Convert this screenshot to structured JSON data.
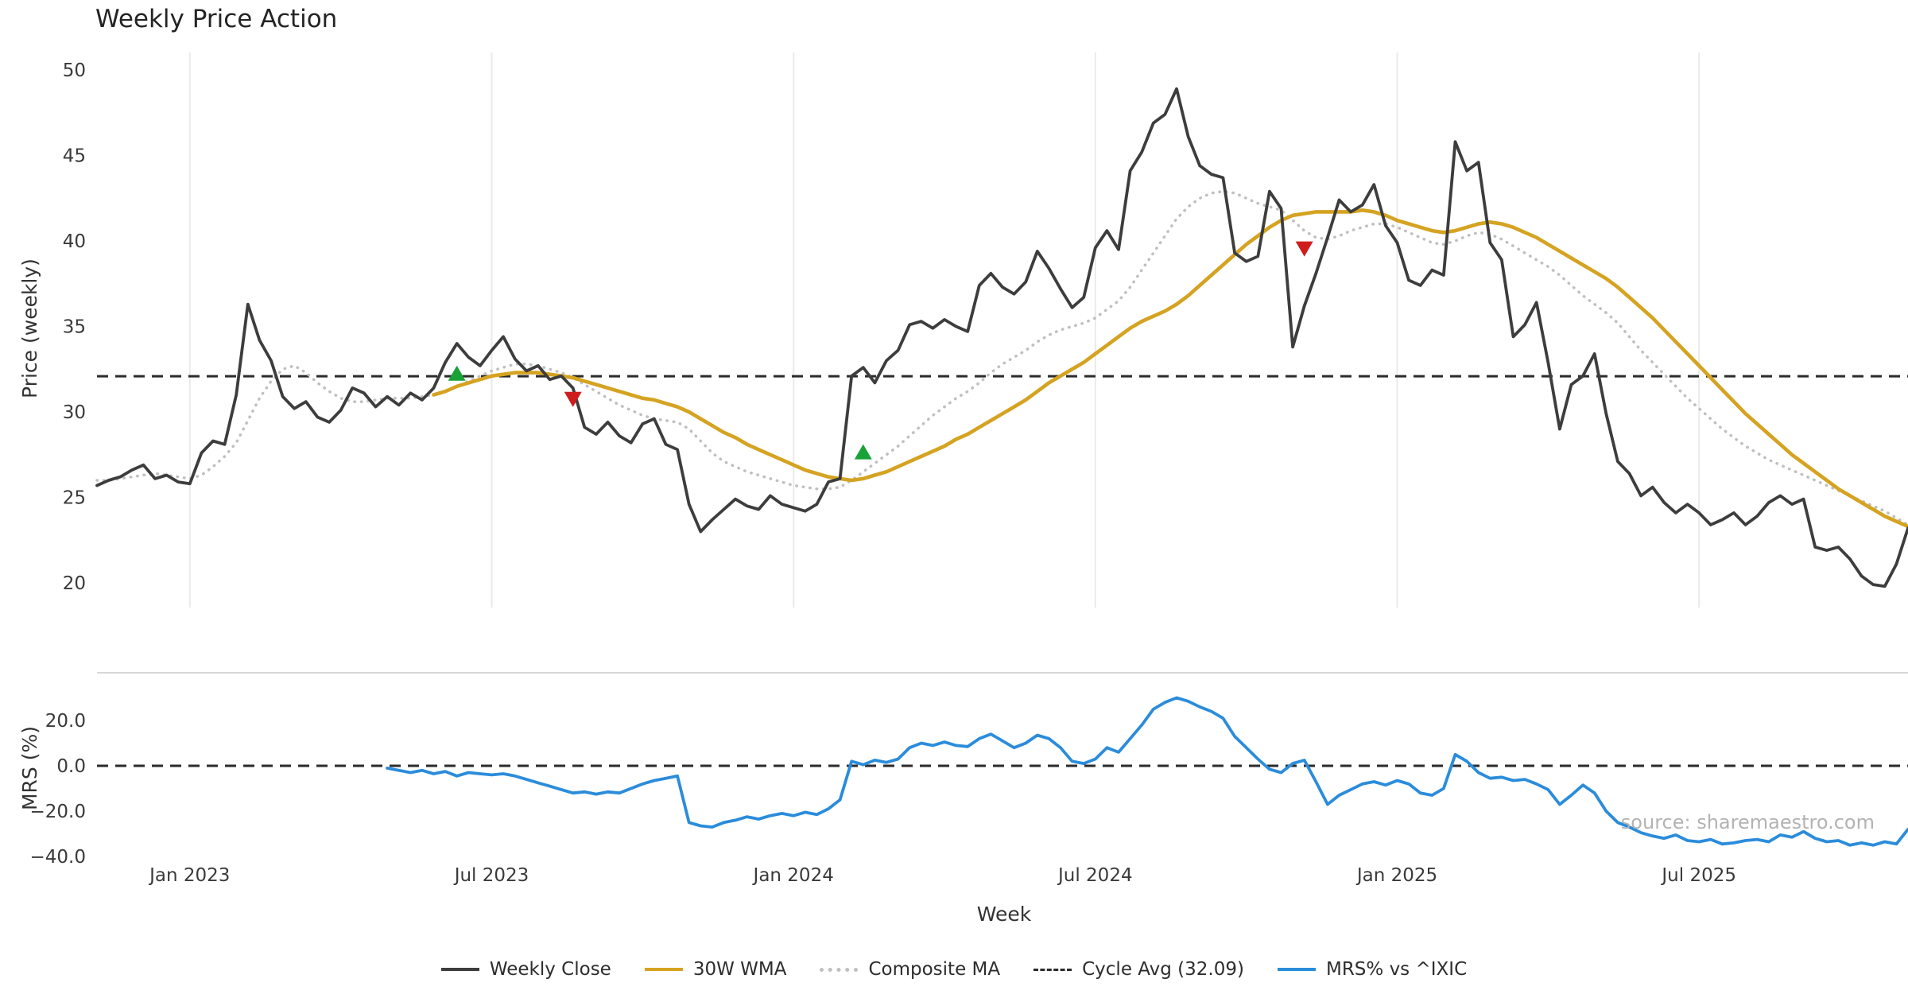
{
  "chart_data": {
    "type": "line",
    "title": "Weekly Price Action",
    "xlabel": "Week",
    "watermark": "source: sharemaestro.com",
    "n_weeks": 157,
    "x_tick_labels": [
      "Jan 2023",
      "Jul 2023",
      "Jan 2024",
      "Jul 2024",
      "Jan 2025",
      "Jul 2025"
    ],
    "x_tick_weeks": [
      8,
      34,
      60,
      86,
      112,
      138
    ],
    "price_panel": {
      "ylabel": "Price (weekly)",
      "y_ticks": [
        50,
        45,
        40,
        35,
        30,
        25,
        20
      ],
      "y_tick_labels": [
        "50",
        "45",
        "40",
        "35",
        "30",
        "25",
        "20"
      ],
      "ylim": [
        18.5,
        51
      ],
      "cycle_avg": 32.09,
      "buy_color": "#18a238",
      "sell_color": "#cf1d1d",
      "series": [
        {
          "name": "Weekly Close",
          "color": "#3d3d3d",
          "style": "solid",
          "start_week": 0,
          "values": [
            25.7,
            26.0,
            26.2,
            26.6,
            26.9,
            26.1,
            26.3,
            25.9,
            25.8,
            27.6,
            28.3,
            28.1,
            31.0,
            36.3,
            34.2,
            33.0,
            30.9,
            30.2,
            30.6,
            29.7,
            29.4,
            30.1,
            31.4,
            31.1,
            30.3,
            30.9,
            30.4,
            31.1,
            30.7,
            31.4,
            32.9,
            34.0,
            33.2,
            32.7,
            33.6,
            34.4,
            33.1,
            32.4,
            32.7,
            31.9,
            32.1,
            31.4,
            29.1,
            28.7,
            29.4,
            28.6,
            28.2,
            29.3,
            29.6,
            28.1,
            27.8,
            24.6,
            23.0,
            23.7,
            24.3,
            24.9,
            24.5,
            24.3,
            25.1,
            24.6,
            24.4,
            24.2,
            24.6,
            25.9,
            26.1,
            32.1,
            32.6,
            31.7,
            33.0,
            33.6,
            35.1,
            35.3,
            34.9,
            35.4,
            35.0,
            34.7,
            37.4,
            38.1,
            37.3,
            36.9,
            37.6,
            39.4,
            38.4,
            37.2,
            36.1,
            36.7,
            39.6,
            40.6,
            39.5,
            44.1,
            45.2,
            46.9,
            47.4,
            48.9,
            46.1,
            44.4,
            43.9,
            43.7,
            39.3,
            38.8,
            39.1,
            42.9,
            41.9,
            33.8,
            36.2,
            38.1,
            40.2,
            42.4,
            41.7,
            42.1,
            43.3,
            40.9,
            39.9,
            37.7,
            37.4,
            38.3,
            38.0,
            45.8,
            44.1,
            44.6,
            39.9,
            38.9,
            34.4,
            35.1,
            36.4,
            32.9,
            29.0,
            31.6,
            32.1,
            33.4,
            29.9,
            27.1,
            26.4,
            25.1,
            25.6,
            24.7,
            24.1,
            24.6,
            24.1,
            23.4,
            23.7,
            24.1,
            23.4,
            23.9,
            24.7,
            25.1,
            24.6,
            24.9,
            22.1,
            21.9,
            22.1,
            21.4,
            20.4,
            19.9,
            19.8,
            21.1,
            23.2
          ]
        },
        {
          "name": "30W WMA",
          "color": "#d5a321",
          "style": "solid",
          "start_week": 29,
          "values": [
            31.0,
            31.2,
            31.5,
            31.7,
            31.9,
            32.1,
            32.2,
            32.3,
            32.3,
            32.3,
            32.2,
            32.1,
            32.0,
            31.8,
            31.6,
            31.4,
            31.2,
            31.0,
            30.8,
            30.7,
            30.5,
            30.3,
            30.0,
            29.6,
            29.2,
            28.8,
            28.5,
            28.1,
            27.8,
            27.5,
            27.2,
            26.9,
            26.6,
            26.4,
            26.2,
            26.1,
            26.0,
            26.1,
            26.3,
            26.5,
            26.8,
            27.1,
            27.4,
            27.7,
            28.0,
            28.4,
            28.7,
            29.1,
            29.5,
            29.9,
            30.3,
            30.7,
            31.2,
            31.7,
            32.1,
            32.5,
            32.9,
            33.4,
            33.9,
            34.4,
            34.9,
            35.3,
            35.6,
            35.9,
            36.3,
            36.8,
            37.4,
            38.0,
            38.6,
            39.2,
            39.8,
            40.3,
            40.8,
            41.2,
            41.5,
            41.6,
            41.7,
            41.7,
            41.7,
            41.7,
            41.8,
            41.7,
            41.5,
            41.2,
            41.0,
            40.8,
            40.6,
            40.5,
            40.6,
            40.8,
            41.0,
            41.1,
            41.0,
            40.8,
            40.5,
            40.2,
            39.8,
            39.4,
            39.0,
            38.6,
            38.2,
            37.8,
            37.3,
            36.7,
            36.1,
            35.5,
            34.8,
            34.1,
            33.4,
            32.7,
            32.0,
            31.3,
            30.6,
            29.9,
            29.3,
            28.7,
            28.1,
            27.5,
            27.0,
            26.5,
            26.0,
            25.5,
            25.1,
            24.7,
            24.3,
            23.9,
            23.6,
            23.3
          ]
        },
        {
          "name": "Composite MA",
          "color": "#c0c0c0",
          "style": "dotted",
          "start_week": 0,
          "values": [
            26.0,
            26.0,
            26.1,
            26.2,
            26.3,
            26.4,
            26.3,
            26.2,
            26.1,
            26.3,
            26.8,
            27.4,
            28.2,
            29.5,
            30.8,
            31.8,
            32.5,
            32.7,
            32.3,
            31.7,
            31.2,
            30.8,
            30.6,
            30.6,
            30.7,
            30.8,
            30.8,
            30.8,
            30.9,
            31.0,
            31.2,
            31.5,
            31.8,
            32.1,
            32.4,
            32.6,
            32.8,
            32.8,
            32.7,
            32.5,
            32.3,
            32.0,
            31.6,
            31.2,
            30.8,
            30.4,
            30.1,
            29.8,
            29.6,
            29.5,
            29.4,
            29.0,
            28.3,
            27.6,
            27.1,
            26.8,
            26.5,
            26.3,
            26.1,
            25.9,
            25.7,
            25.6,
            25.5,
            25.5,
            25.6,
            26.0,
            26.5,
            27.0,
            27.5,
            28.0,
            28.6,
            29.2,
            29.8,
            30.3,
            30.8,
            31.2,
            31.7,
            32.3,
            32.8,
            33.2,
            33.6,
            34.1,
            34.5,
            34.8,
            35.0,
            35.2,
            35.5,
            36.0,
            36.5,
            37.3,
            38.3,
            39.3,
            40.3,
            41.3,
            42.0,
            42.5,
            42.8,
            42.9,
            42.8,
            42.5,
            42.2,
            42.0,
            41.8,
            41.2,
            40.6,
            40.2,
            40.1,
            40.3,
            40.6,
            40.8,
            41.0,
            41.0,
            40.8,
            40.5,
            40.2,
            39.9,
            39.8,
            40.0,
            40.3,
            40.5,
            40.4,
            40.1,
            39.7,
            39.3,
            38.9,
            38.5,
            38.0,
            37.4,
            36.8,
            36.3,
            35.8,
            35.2,
            34.4,
            33.6,
            32.9,
            32.2,
            31.5,
            30.8,
            30.2,
            29.6,
            29.0,
            28.5,
            28.0,
            27.6,
            27.2,
            26.9,
            26.6,
            26.3,
            26.0,
            25.7,
            25.4,
            25.1,
            24.8,
            24.5,
            24.2,
            23.8,
            23.4
          ]
        }
      ],
      "buy_markers": [
        {
          "week": 31,
          "value": 32.2
        },
        {
          "week": 66,
          "value": 27.6
        }
      ],
      "sell_markers": [
        {
          "week": 41,
          "value": 30.8
        },
        {
          "week": 104,
          "value": 39.6
        }
      ]
    },
    "mrs_panel": {
      "ylabel": "MRS (%)",
      "y_ticks": [
        20,
        0,
        -20,
        -40
      ],
      "y_tick_labels": [
        "20.0",
        "0.0",
        "−20.0",
        "−40.0"
      ],
      "ylim": [
        -44,
        41
      ],
      "zero_line": 0,
      "series": [
        {
          "name": "MRS% vs ^IXIC",
          "color": "#2b8cdb",
          "style": "solid",
          "start_week": 25,
          "values": [
            -1.0,
            -2.0,
            -3.0,
            -2.0,
            -3.5,
            -2.5,
            -4.5,
            -3.0,
            -3.5,
            -4.0,
            -3.5,
            -4.5,
            -6.0,
            -7.5,
            -9.0,
            -10.5,
            -12.0,
            -11.5,
            -12.5,
            -11.5,
            -12.0,
            -10.0,
            -8.0,
            -6.5,
            -5.5,
            -4.5,
            -25.0,
            -26.5,
            -27.0,
            -25.0,
            -24.0,
            -22.5,
            -23.5,
            -22.0,
            -21.0,
            -22.0,
            -20.5,
            -21.5,
            -19.0,
            -15.0,
            2.0,
            0.5,
            2.5,
            1.5,
            3.0,
            8.0,
            10.0,
            9.0,
            10.5,
            9.0,
            8.5,
            12.0,
            14.0,
            11.0,
            8.0,
            10.0,
            13.5,
            12.0,
            8.0,
            2.0,
            1.0,
            3.0,
            8.0,
            6.0,
            12.0,
            18.0,
            25.0,
            28.0,
            30.0,
            28.5,
            26.0,
            24.0,
            21.0,
            13.0,
            8.0,
            3.0,
            -1.5,
            -3.0,
            1.0,
            2.5,
            -7.0,
            -17.0,
            -13.0,
            -10.5,
            -8.0,
            -7.0,
            -8.5,
            -6.5,
            -8.0,
            -12.0,
            -13.0,
            -10.0,
            5.0,
            2.0,
            -3.0,
            -5.5,
            -5.0,
            -6.5,
            -6.0,
            -8.0,
            -10.5,
            -17.0,
            -13.0,
            -8.5,
            -12.0,
            -20.0,
            -25.0,
            -27.0,
            -29.5,
            -31.0,
            -32.0,
            -30.5,
            -33.0,
            -33.5,
            -32.5,
            -34.5,
            -34.0,
            -33.0,
            -32.5,
            -33.5,
            -30.5,
            -31.5,
            -29.0,
            -32.0,
            -33.5,
            -33.0,
            -35.0,
            -34.0,
            -35.0,
            -33.5,
            -34.5,
            -28.0
          ]
        }
      ]
    },
    "legend": [
      {
        "label": "Weekly Close",
        "color": "#3d3d3d",
        "style": "solid"
      },
      {
        "label": "30W WMA",
        "color": "#d5a321",
        "style": "solid"
      },
      {
        "label": "Composite MA",
        "color": "#c0c0c0",
        "style": "dotted"
      },
      {
        "label": "Cycle Avg (32.09)",
        "color": "#2b2b2b",
        "style": "dashed"
      },
      {
        "label": "MRS% vs ^IXIC",
        "color": "#2b8cdb",
        "style": "solid"
      }
    ]
  }
}
